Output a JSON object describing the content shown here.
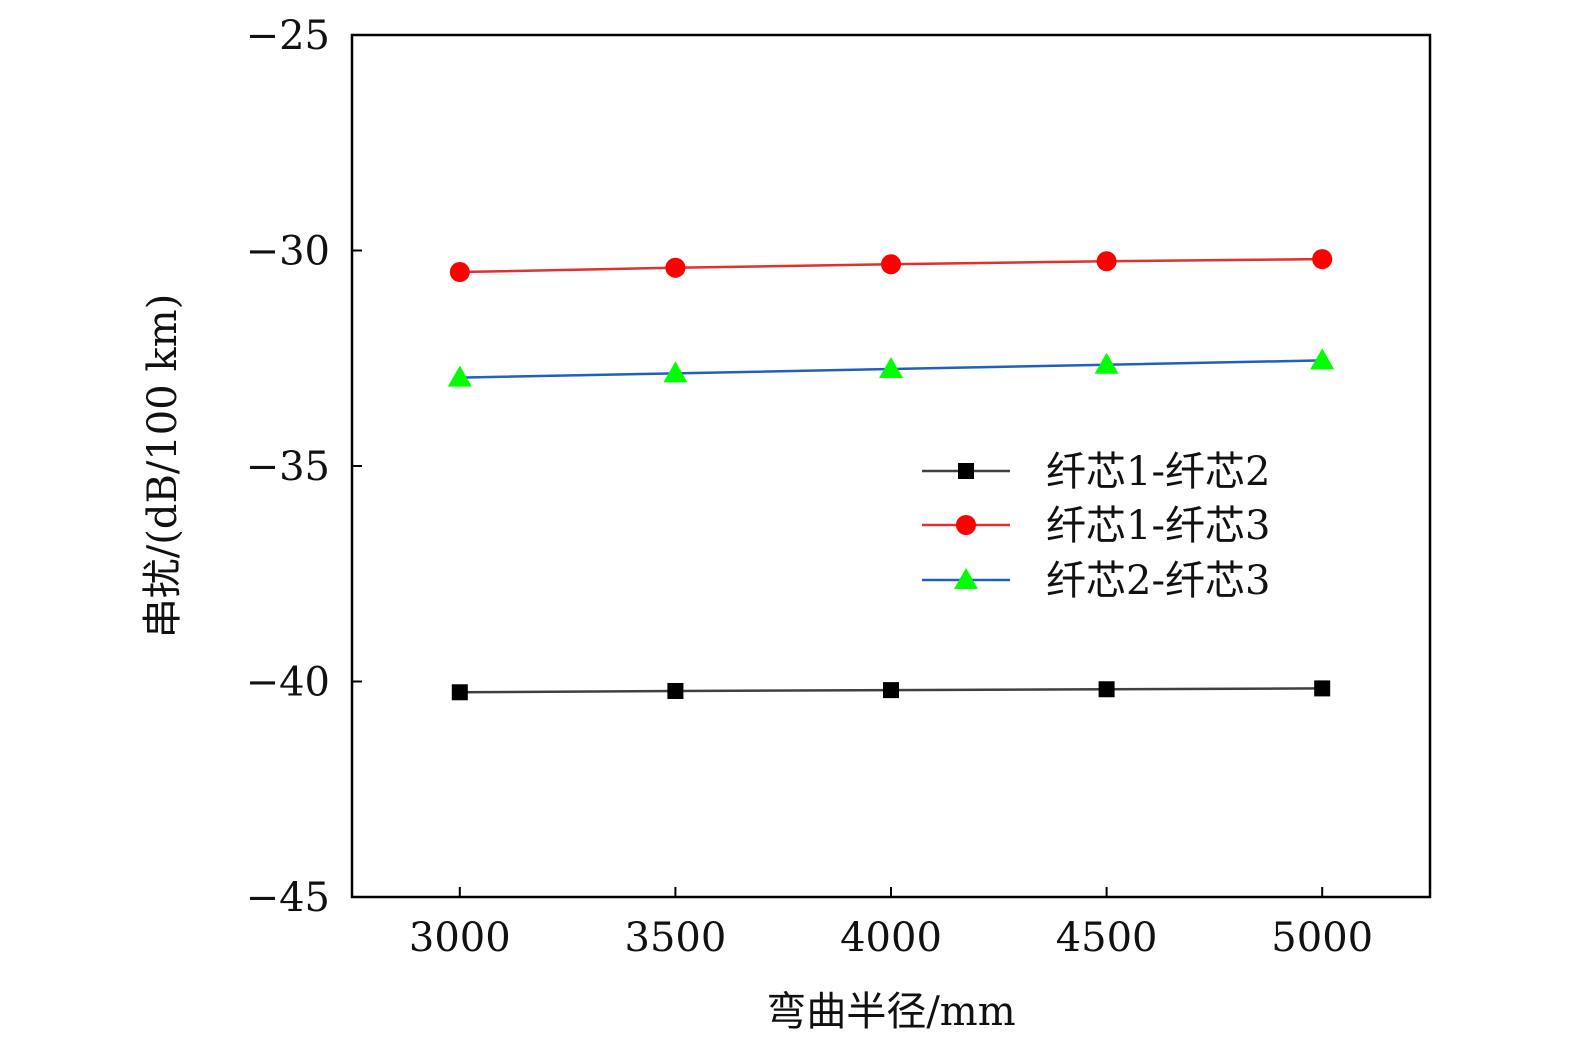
{
  "chart_data": {
    "type": "line",
    "xlabel": "弯曲半径/mm",
    "ylabel": "串扰/(dB/100 km)",
    "xlim": [
      2750,
      5250
    ],
    "ylim": [
      -45,
      -25
    ],
    "xticks": [
      3000,
      3500,
      4000,
      4500,
      5000
    ],
    "yticks": [
      -45,
      -40,
      -35,
      -30,
      -25
    ],
    "ytick_labels": [
      "−45",
      "−40",
      "−35",
      "−30",
      "−25"
    ],
    "xtick_labels": [
      "3000",
      "3500",
      "4000",
      "4500",
      "5000"
    ],
    "grid": false,
    "legend_position": "center-right",
    "x": [
      3000,
      3500,
      4000,
      4500,
      5000
    ],
    "series": [
      {
        "name": "纤芯1-纤芯2",
        "values": [
          -40.25,
          -40.22,
          -40.2,
          -40.18,
          -40.16
        ],
        "color": "#404040",
        "marker_color": "#000000",
        "marker": "square"
      },
      {
        "name": "纤芯1-纤芯3",
        "values": [
          -30.5,
          -30.4,
          -30.32,
          -30.25,
          -30.2
        ],
        "color": "#e03030",
        "marker_color": "#ff0000",
        "marker": "circle"
      },
      {
        "name": "纤芯2-纤芯3",
        "values": [
          -32.95,
          -32.85,
          -32.75,
          -32.65,
          -32.55
        ],
        "color": "#2060c0",
        "marker_color": "#00ff00",
        "marker": "triangle"
      }
    ]
  }
}
